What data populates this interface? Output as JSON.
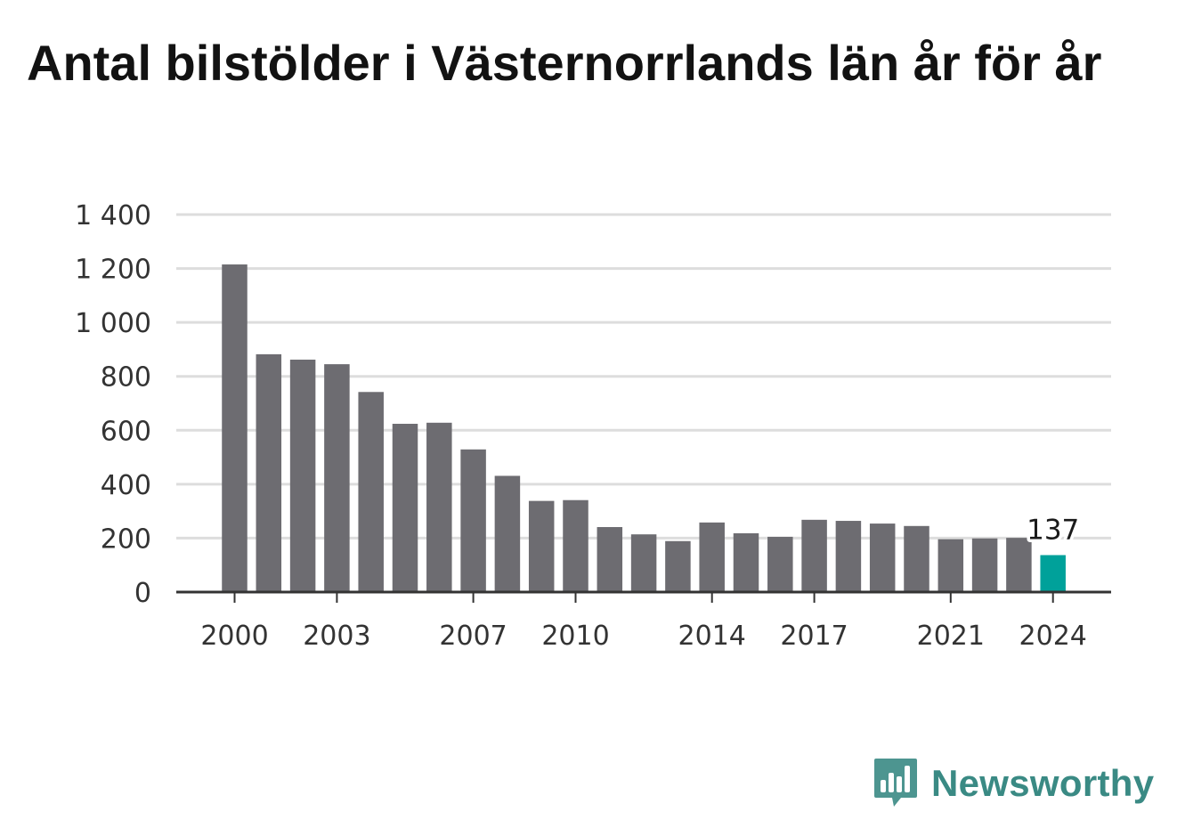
{
  "chart_data": {
    "type": "bar",
    "title": "Antal bilstölder i Västernorrlands län år för år",
    "xlabel": "",
    "ylabel": "",
    "categories": [
      "2000",
      "2001",
      "2002",
      "2003",
      "2004",
      "2005",
      "2006",
      "2007",
      "2008",
      "2009",
      "2010",
      "2011",
      "2012",
      "2013",
      "2014",
      "2015",
      "2016",
      "2017",
      "2018",
      "2019",
      "2020",
      "2021",
      "2022",
      "2023",
      "2024"
    ],
    "values": [
      1215,
      882,
      862,
      845,
      742,
      624,
      628,
      529,
      431,
      338,
      341,
      241,
      214,
      189,
      258,
      218,
      205,
      268,
      264,
      254,
      245,
      196,
      199,
      201,
      137
    ],
    "ylim": [
      0,
      1400
    ],
    "yticks": [
      0,
      200,
      400,
      600,
      800,
      1000,
      1200,
      1400
    ],
    "ytick_labels": [
      "0",
      "200",
      "400",
      "600",
      "800",
      "1 000",
      "1 200",
      "1 400"
    ],
    "xtick_labels": [
      "2000",
      "2003",
      "2007",
      "2010",
      "2014",
      "2017",
      "2021",
      "2024"
    ],
    "highlight": {
      "category": "2024",
      "label": "137"
    },
    "colors": {
      "bar": "#6d6c71",
      "highlight": "#00a19a",
      "grid": "#dddddd",
      "axis": "#333333"
    }
  },
  "brand": {
    "name": "Newsworthy",
    "color": "#3a8a84"
  }
}
